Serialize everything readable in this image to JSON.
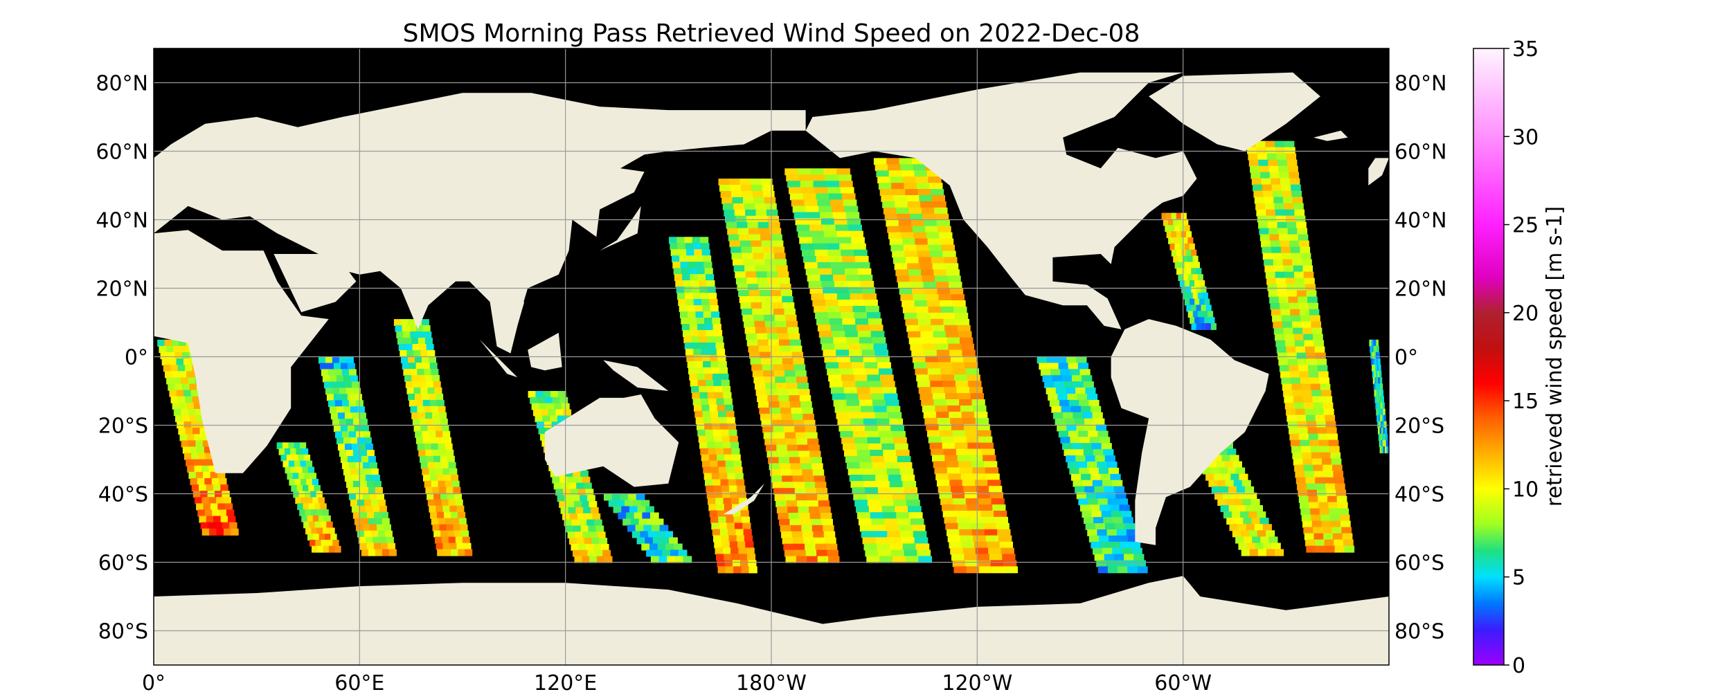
{
  "chart_data": {
    "type": "heatmap",
    "title": "SMOS Morning Pass Retrieved Wind Speed on 2022-Dec-08",
    "projection": "plate-carree, centered on 180°",
    "x_ticks": [
      "0°",
      "60°E",
      "120°E",
      "180°W",
      "120°W",
      "60°W"
    ],
    "y_ticks_left": [
      "80°N",
      "60°N",
      "40°N",
      "20°N",
      "0°",
      "20°S",
      "40°S",
      "60°S",
      "80°S"
    ],
    "y_ticks_right": [
      "80°N",
      "60°N",
      "40°N",
      "20°N",
      "0°",
      "20°S",
      "40°S",
      "60°S",
      "80°S"
    ],
    "lon_range": [
      0,
      360
    ],
    "lat_range": [
      -90,
      90
    ],
    "grid": true,
    "ocean_color": "#000000",
    "land_color": "#efecdc",
    "colorbar": {
      "label": "retrieved wind speed [m s-1]",
      "range": [
        0,
        35
      ],
      "ticks": [
        "0",
        "5",
        "10",
        "15",
        "20",
        "25",
        "30",
        "35"
      ],
      "colormap": "gist_ncar-like",
      "stops": [
        {
          "value": 0,
          "color": "#9b00ff"
        },
        {
          "value": 2,
          "color": "#3c1cff"
        },
        {
          "value": 3.5,
          "color": "#0078ff"
        },
        {
          "value": 5,
          "color": "#00e0ff"
        },
        {
          "value": 6.5,
          "color": "#20e080"
        },
        {
          "value": 8,
          "color": "#a0ff20"
        },
        {
          "value": 10,
          "color": "#ffff00"
        },
        {
          "value": 12,
          "color": "#ffb000"
        },
        {
          "value": 14,
          "color": "#ff6000"
        },
        {
          "value": 16,
          "color": "#ff0000"
        },
        {
          "value": 18,
          "color": "#c01010"
        },
        {
          "value": 20,
          "color": "#b02030"
        },
        {
          "value": 22,
          "color": "#e000c0"
        },
        {
          "value": 25,
          "color": "#ff20ff"
        },
        {
          "value": 30,
          "color": "#ff90ff"
        },
        {
          "value": 35,
          "color": "#fff4ff"
        }
      ]
    },
    "swaths": [
      {
        "lon_start": 0,
        "lon_end": 25,
        "lat_top": 5,
        "lat_bottom": -52,
        "mean_speed": 9,
        "bottom_speed": 14
      },
      {
        "lon_start": 35,
        "lon_end": 55,
        "lat_top": -25,
        "lat_bottom": -57,
        "mean_speed": 7,
        "bottom_speed": 13
      },
      {
        "lon_start": 47,
        "lon_end": 71,
        "lat_top": 0,
        "lat_bottom": -58,
        "mean_speed": 6,
        "bottom_speed": 11
      },
      {
        "lon_start": 69,
        "lon_end": 93,
        "lat_top": 11,
        "lat_bottom": -58,
        "mean_speed": 8,
        "bottom_speed": 12
      },
      {
        "lon_start": 108,
        "lon_end": 134,
        "lat_top": -10,
        "lat_bottom": -60,
        "mean_speed": 8,
        "bottom_speed": 10
      },
      {
        "lon_start": 130,
        "lon_end": 158,
        "lat_top": -40,
        "lat_bottom": -60,
        "mean_speed": 6,
        "bottom_speed": 7
      },
      {
        "lon_start": 149,
        "lon_end": 176,
        "lat_top": 35,
        "lat_bottom": -63,
        "mean_speed": 8,
        "bottom_speed": 13
      },
      {
        "lon_start": 163,
        "lon_end": 200,
        "lat_top": 52,
        "lat_bottom": -60,
        "mean_speed": 9,
        "bottom_speed": 12
      },
      {
        "lon_start": 182,
        "lon_end": 227,
        "lat_top": 55,
        "lat_bottom": -60,
        "mean_speed": 9,
        "bottom_speed": 8
      },
      {
        "lon_start": 208,
        "lon_end": 252,
        "lat_top": 58,
        "lat_bottom": -63,
        "mean_speed": 10,
        "bottom_speed": 12
      },
      {
        "lon_start": 256,
        "lon_end": 290,
        "lat_top": 0,
        "lat_bottom": -63,
        "mean_speed": 7,
        "bottom_speed": 6
      },
      {
        "lon_start": 293,
        "lon_end": 310,
        "lat_top": 42,
        "lat_bottom": 8,
        "mean_speed": 11,
        "bottom_speed": 4
      },
      {
        "lon_start": 301,
        "lon_end": 330,
        "lat_top": -25,
        "lat_bottom": -58,
        "mean_speed": 8,
        "bottom_speed": 10
      },
      {
        "lon_start": 317,
        "lon_end": 350,
        "lat_top": 63,
        "lat_bottom": -57,
        "mean_speed": 9,
        "bottom_speed": 11
      },
      {
        "lon_start": 354,
        "lon_end": 360,
        "lat_top": 5,
        "lat_bottom": -28,
        "mean_speed": 6,
        "bottom_speed": 6
      }
    ]
  }
}
